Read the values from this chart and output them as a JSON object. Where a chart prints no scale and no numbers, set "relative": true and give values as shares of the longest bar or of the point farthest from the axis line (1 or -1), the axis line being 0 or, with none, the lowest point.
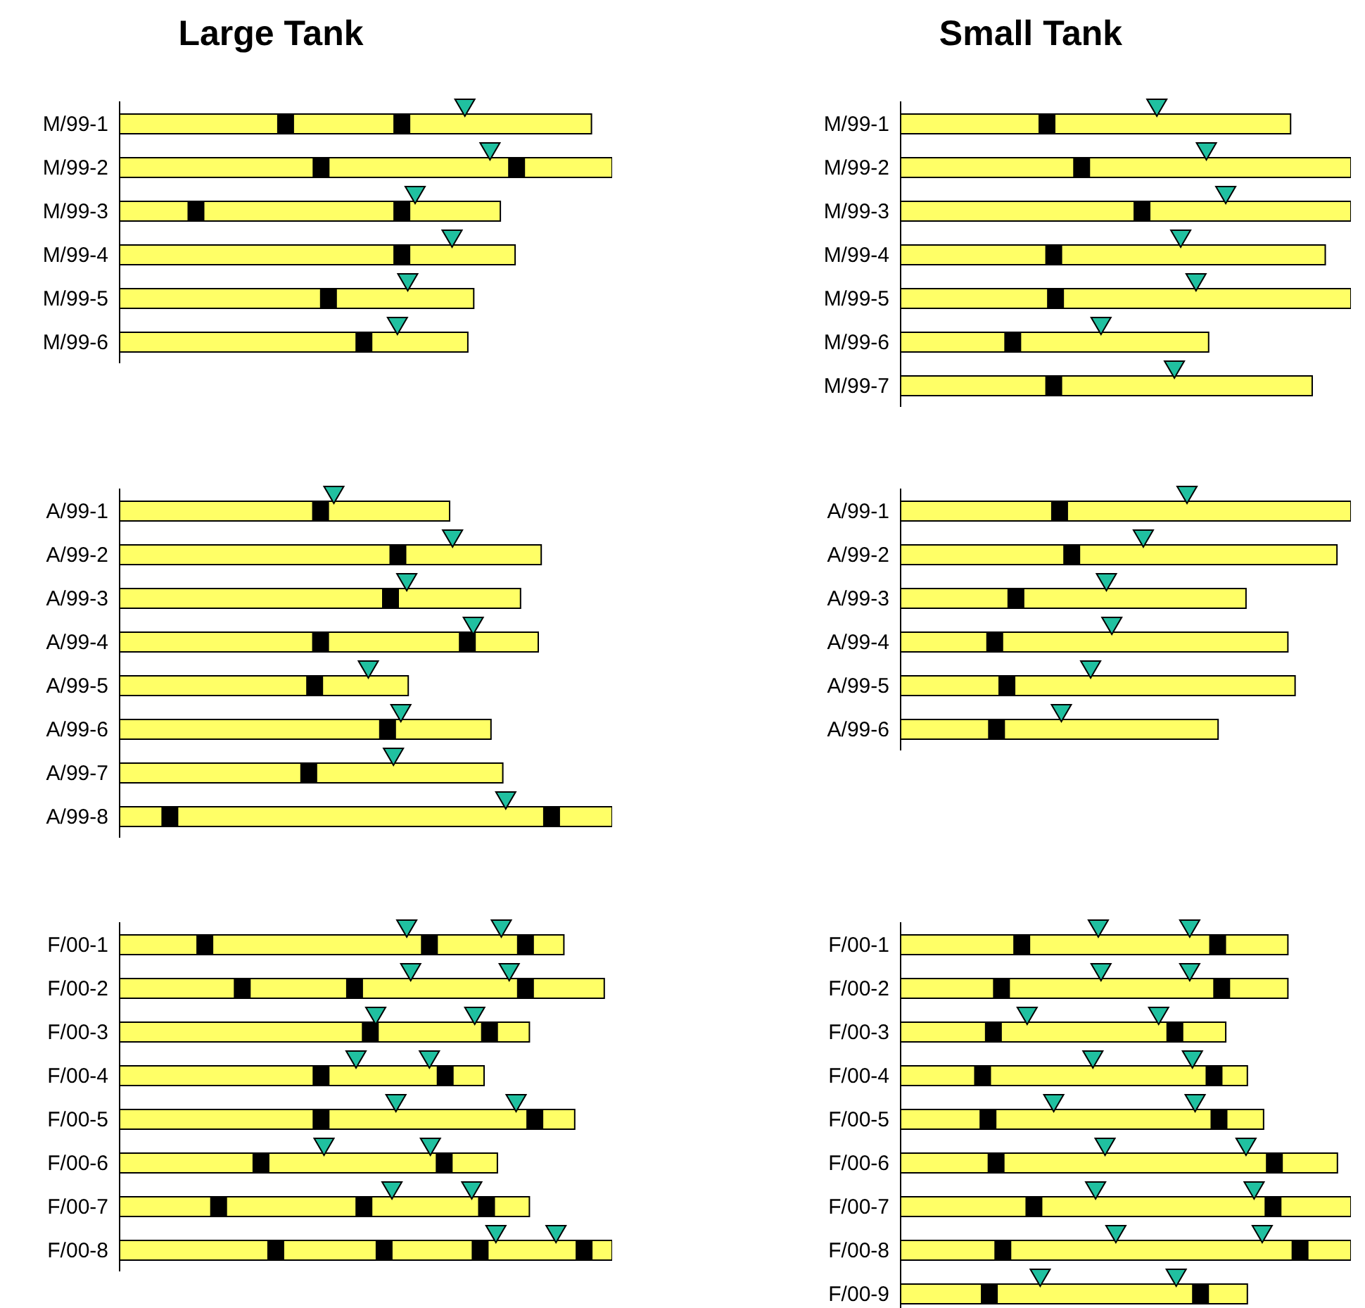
{
  "chart_data": [
    {
      "type": "bar",
      "orientation": "horizontal",
      "relative": true,
      "title": "Large Tank",
      "legend": false,
      "categories": [
        "M/99-1",
        "M/99-2",
        "M/99-3",
        "M/99-4",
        "M/99-5",
        "M/99-6"
      ],
      "series": [
        {
          "type": "bar",
          "color": "#ffff66",
          "values": [
            0.958,
            1,
            0.773,
            0.803,
            0.719,
            0.707
          ]
        },
        {
          "type": "scatter",
          "marker": "square",
          "color": "#000000",
          "values": [
            0.337,
            0.409,
            0.155,
            0.573,
            0.424,
            0.496
          ]
        },
        {
          "type": "scatter",
          "marker": "square",
          "color": "#000000",
          "values": [
            0.573,
            0.806,
            0.573,
            null,
            null,
            null
          ]
        },
        {
          "type": "scatter",
          "marker": "triangle",
          "color": "#20c0a0",
          "values": [
            0.701,
            0.752,
            0.6,
            0.675,
            0.585,
            0.564
          ]
        }
      ]
    },
    {
      "type": "bar",
      "orientation": "horizontal",
      "relative": true,
      "title": "Small Tank",
      "legend": false,
      "categories": [
        "M/99-1",
        "M/99-2",
        "M/99-3",
        "M/99-4",
        "M/99-5",
        "M/99-6",
        "M/99-7"
      ],
      "series": [
        {
          "type": "bar",
          "color": "#ffff66",
          "values": [
            0.866,
            1,
            1,
            0.943,
            1,
            0.684,
            0.914
          ]
        },
        {
          "type": "scatter",
          "marker": "square",
          "color": "#000000",
          "values": [
            0.325,
            0.402,
            0.536,
            0.34,
            0.344,
            0.249,
            0.34
          ]
        },
        {
          "type": "scatter",
          "marker": "triangle",
          "color": "#20c0a0",
          "values": [
            0.569,
            0.679,
            0.722,
            0.622,
            0.656,
            0.445,
            0.608
          ]
        }
      ]
    },
    {
      "type": "bar",
      "orientation": "horizontal",
      "relative": true,
      "legend": false,
      "categories": [
        "A/99-1",
        "A/99-2",
        "A/99-3",
        "A/99-4",
        "A/99-5",
        "A/99-6",
        "A/99-7",
        "A/99-8"
      ],
      "series": [
        {
          "type": "bar",
          "color": "#ffff66",
          "values": [
            0.67,
            0.856,
            0.814,
            0.85,
            0.586,
            0.754,
            0.778,
            1
          ]
        },
        {
          "type": "scatter",
          "marker": "square",
          "color": "#000000",
          "values": [
            0.408,
            0.565,
            0.55,
            0.408,
            0.396,
            0.544,
            0.384,
            0.102
          ]
        },
        {
          "type": "scatter",
          "marker": "square",
          "color": "#000000",
          "values": [
            null,
            null,
            null,
            0.706,
            null,
            null,
            null,
            0.877
          ]
        },
        {
          "type": "scatter",
          "marker": "triangle",
          "color": "#20c0a0",
          "values": [
            0.435,
            0.676,
            0.583,
            0.718,
            0.505,
            0.571,
            0.556,
            0.784
          ]
        }
      ]
    },
    {
      "type": "bar",
      "orientation": "horizontal",
      "relative": true,
      "legend": false,
      "categories": [
        "A/99-1",
        "A/99-2",
        "A/99-3",
        "A/99-4",
        "A/99-5",
        "A/99-6"
      ],
      "series": [
        {
          "type": "bar",
          "color": "#ffff66",
          "values": [
            1,
            0.969,
            0.767,
            0.86,
            0.876,
            0.705
          ]
        },
        {
          "type": "scatter",
          "marker": "square",
          "color": "#000000",
          "values": [
            0.353,
            0.38,
            0.256,
            0.209,
            0.236,
            0.213
          ]
        },
        {
          "type": "scatter",
          "marker": "triangle",
          "color": "#20c0a0",
          "values": [
            0.636,
            0.539,
            0.457,
            0.469,
            0.422,
            0.357
          ]
        }
      ]
    },
    {
      "type": "bar",
      "orientation": "horizontal",
      "relative": true,
      "legend": false,
      "categories": [
        "F/00-1",
        "F/00-2",
        "F/00-3",
        "F/00-4",
        "F/00-5",
        "F/00-6",
        "F/00-7",
        "F/00-8"
      ],
      "series": [
        {
          "type": "bar",
          "color": "#ffff66",
          "values": [
            0.902,
            0.984,
            0.832,
            0.74,
            0.924,
            0.767,
            0.832,
            1
          ]
        },
        {
          "type": "scatter",
          "marker": "square",
          "color": "#000000",
          "values": [
            0.173,
            0.249,
            0.509,
            0.409,
            0.409,
            0.287,
            0.201,
            0.317
          ]
        },
        {
          "type": "scatter",
          "marker": "square",
          "color": "#000000",
          "values": [
            0.629,
            0.477,
            0.751,
            0.661,
            0.843,
            0.659,
            0.496,
            0.537
          ]
        },
        {
          "type": "scatter",
          "marker": "square",
          "color": "#000000",
          "values": [
            0.824,
            0.824,
            null,
            null,
            null,
            null,
            0.745,
            0.732
          ]
        },
        {
          "type": "scatter",
          "marker": "square",
          "color": "#000000",
          "values": [
            null,
            null,
            null,
            null,
            null,
            null,
            null,
            0.943
          ]
        },
        {
          "type": "scatter",
          "marker": "triangle",
          "color": "#20c0a0",
          "values": [
            0.583,
            0.591,
            0.52,
            0.48,
            0.561,
            0.415,
            0.553,
            0.764
          ]
        },
        {
          "type": "scatter",
          "marker": "triangle",
          "color": "#20c0a0",
          "values": [
            0.775,
            0.791,
            0.721,
            0.629,
            0.805,
            0.631,
            0.715,
            0.886
          ]
        }
      ]
    },
    {
      "type": "bar",
      "orientation": "horizontal",
      "relative": true,
      "legend": false,
      "categories": [
        "F/00-1",
        "F/00-2",
        "F/00-3",
        "F/00-4",
        "F/00-5",
        "F/00-6",
        "F/00-7",
        "F/00-8",
        "F/00-9"
      ],
      "series": [
        {
          "type": "bar",
          "color": "#ffff66",
          "values": [
            0.86,
            0.86,
            0.722,
            0.77,
            0.806,
            0.97,
            1,
            1,
            0.77
          ]
        },
        {
          "type": "scatter",
          "marker": "square",
          "color": "#000000",
          "values": [
            0.269,
            0.224,
            0.206,
            0.182,
            0.194,
            0.212,
            0.296,
            0.227,
            0.197
          ]
        },
        {
          "type": "scatter",
          "marker": "square",
          "color": "#000000",
          "values": [
            0.704,
            0.713,
            0.609,
            0.696,
            0.707,
            0.83,
            0.827,
            0.887,
            0.666
          ]
        },
        {
          "type": "scatter",
          "marker": "triangle",
          "color": "#20c0a0",
          "values": [
            0.439,
            0.445,
            0.281,
            0.427,
            0.34,
            0.454,
            0.433,
            0.478,
            0.31
          ]
        },
        {
          "type": "scatter",
          "marker": "triangle",
          "color": "#20c0a0",
          "values": [
            0.642,
            0.642,
            0.573,
            0.648,
            0.654,
            0.767,
            0.785,
            0.803,
            0.612
          ]
        }
      ]
    }
  ]
}
